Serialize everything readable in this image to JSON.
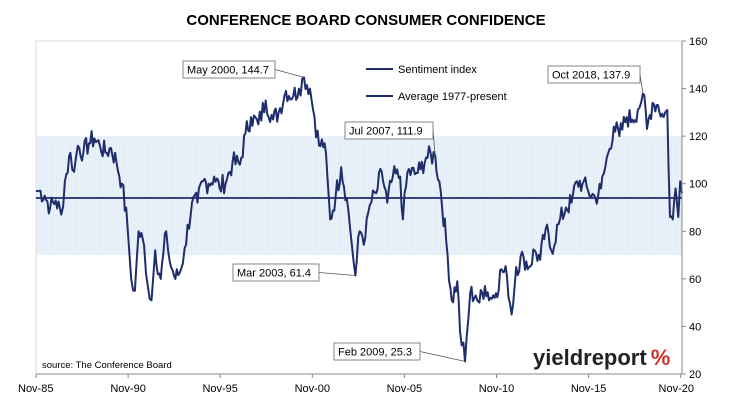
{
  "chart_data": {
    "type": "line",
    "title": "CONFERENCE BOARD CONSUMER CONFIDENCE",
    "xlabel": "",
    "ylabel": "",
    "x_range": [
      "1985-11",
      "2020-11"
    ],
    "ylim": [
      20,
      160
    ],
    "yticks": [
      "20",
      "40",
      "60",
      "80",
      "100",
      "120",
      "140",
      "160"
    ],
    "y_tick_values": [
      20,
      40,
      60,
      80,
      100,
      120,
      140,
      160
    ],
    "xticks": [
      "Nov-85",
      "Nov-90",
      "Nov-95",
      "Nov-00",
      "Nov-05",
      "Nov-10",
      "Nov-15",
      "Nov-20"
    ],
    "x_tick_years": [
      1985.83,
      1990.83,
      1995.83,
      2000.83,
      2005.83,
      2010.83,
      2015.83,
      2020.83
    ],
    "band": {
      "low": 70,
      "high": 120,
      "color": "#c9dcf0"
    },
    "legend": [
      "Sentiment index",
      "Average 1977-present"
    ],
    "average": 94,
    "series": [
      {
        "name": "Sentiment index",
        "color": "#1f2d6b",
        "points": [
          [
            1985.83,
            97
          ],
          [
            1986.0,
            97
          ],
          [
            1986.3,
            95
          ],
          [
            1986.6,
            90
          ],
          [
            1986.9,
            93
          ],
          [
            1987.2,
            87
          ],
          [
            1987.4,
            101
          ],
          [
            1987.7,
            113
          ],
          [
            1987.9,
            105
          ],
          [
            1988.1,
            116
          ],
          [
            1988.4,
            113
          ],
          [
            1988.7,
            117
          ],
          [
            1989.0,
            119
          ],
          [
            1989.3,
            116
          ],
          [
            1989.6,
            113
          ],
          [
            1989.9,
            115
          ],
          [
            1990.2,
            109
          ],
          [
            1990.5,
            100
          ],
          [
            1990.8,
            82
          ],
          [
            1991.0,
            60
          ],
          [
            1991.2,
            55
          ],
          [
            1991.4,
            80
          ],
          [
            1991.7,
            74
          ],
          [
            1991.9,
            57
          ],
          [
            1992.1,
            51
          ],
          [
            1992.3,
            72
          ],
          [
            1992.6,
            60
          ],
          [
            1992.9,
            80
          ],
          [
            1993.1,
            67
          ],
          [
            1993.4,
            60
          ],
          [
            1993.7,
            64
          ],
          [
            1993.9,
            73
          ],
          [
            1994.3,
            92
          ],
          [
            1994.6,
            92
          ],
          [
            1994.9,
            101
          ],
          [
            1995.2,
            100
          ],
          [
            1995.5,
            103
          ],
          [
            1995.8,
            98
          ],
          [
            1996.2,
            102
          ],
          [
            1996.5,
            109
          ],
          [
            1996.9,
            108
          ],
          [
            1997.2,
            121
          ],
          [
            1997.5,
            128
          ],
          [
            1997.9,
            125
          ],
          [
            1998.3,
            135
          ],
          [
            1998.7,
            127
          ],
          [
            1999.0,
            130
          ],
          [
            1999.4,
            139
          ],
          [
            1999.8,
            137
          ],
          [
            2000.1,
            140
          ],
          [
            2000.38,
            144.7
          ],
          [
            2000.7,
            140
          ],
          [
            2000.95,
            128
          ],
          [
            2001.2,
            116
          ],
          [
            2001.5,
            117
          ],
          [
            2001.8,
            85
          ],
          [
            2002.1,
            95
          ],
          [
            2002.4,
            107
          ],
          [
            2002.7,
            94
          ],
          [
            2002.9,
            80
          ],
          [
            2003.17,
            61.4
          ],
          [
            2003.4,
            80
          ],
          [
            2003.7,
            77
          ],
          [
            2003.95,
            91
          ],
          [
            2004.3,
            96
          ],
          [
            2004.6,
            105
          ],
          [
            2004.9,
            92
          ],
          [
            2005.2,
            103
          ],
          [
            2005.6,
            103
          ],
          [
            2005.75,
            85
          ],
          [
            2006.0,
            105
          ],
          [
            2006.4,
            104
          ],
          [
            2006.7,
            106
          ],
          [
            2007.0,
            111
          ],
          [
            2007.5,
            111.9
          ],
          [
            2007.8,
            97
          ],
          [
            2008.1,
            76
          ],
          [
            2008.4,
            51
          ],
          [
            2008.7,
            59
          ],
          [
            2008.85,
            38
          ],
          [
            2009.12,
            25.3
          ],
          [
            2009.4,
            54
          ],
          [
            2009.7,
            53
          ],
          [
            2009.9,
            50
          ],
          [
            2010.2,
            57
          ],
          [
            2010.5,
            52
          ],
          [
            2010.8,
            54
          ],
          [
            2011.1,
            64
          ],
          [
            2011.4,
            61
          ],
          [
            2011.65,
            45
          ],
          [
            2011.9,
            65
          ],
          [
            2012.3,
            69
          ],
          [
            2012.6,
            65
          ],
          [
            2012.9,
            72
          ],
          [
            2013.2,
            68
          ],
          [
            2013.5,
            81
          ],
          [
            2013.8,
            72
          ],
          [
            2014.2,
            83
          ],
          [
            2014.6,
            90
          ],
          [
            2014.9,
            92
          ],
          [
            2015.2,
            101
          ],
          [
            2015.5,
            100
          ],
          [
            2015.8,
            97
          ],
          [
            2016.2,
            94
          ],
          [
            2016.5,
            98
          ],
          [
            2016.9,
            113
          ],
          [
            2017.2,
            124
          ],
          [
            2017.5,
            120
          ],
          [
            2017.9,
            128
          ],
          [
            2018.2,
            127
          ],
          [
            2018.5,
            131
          ],
          [
            2018.78,
            137.9
          ],
          [
            2019.0,
            123
          ],
          [
            2019.3,
            134
          ],
          [
            2019.6,
            133
          ],
          [
            2019.9,
            128
          ],
          [
            2020.1,
            131
          ],
          [
            2020.25,
            86
          ],
          [
            2020.4,
            85
          ],
          [
            2020.55,
            98
          ],
          [
            2020.7,
            86
          ],
          [
            2020.8,
            101
          ],
          [
            2020.9,
            96
          ]
        ]
      },
      {
        "name": "Average 1977-present",
        "color": "#1f2d6b",
        "points": [
          [
            1985.83,
            94
          ],
          [
            2020.9,
            94
          ]
        ]
      }
    ],
    "annotations": [
      {
        "label": "May 2000, 144.7",
        "x": 2000.38,
        "y": 144.7
      },
      {
        "label": "Jul 2007, 111.9",
        "x": 2007.5,
        "y": 111.9
      },
      {
        "label": "Mar 2003, 61.4",
        "x": 2003.17,
        "y": 61.4
      },
      {
        "label": "Feb 2009, 25.3",
        "x": 2009.12,
        "y": 25.3
      },
      {
        "label": "Oct 2018, 137.9",
        "x": 2018.78,
        "y": 137.9
      }
    ],
    "grid": false,
    "legend_position": "top-center"
  },
  "source": "source: The Conference Board",
  "brand": {
    "text": "yieldreport",
    "symbol": "%",
    "symbol_color": "#d0312d"
  }
}
